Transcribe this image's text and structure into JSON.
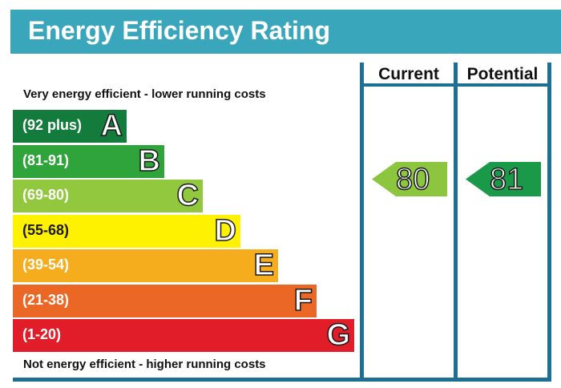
{
  "title": "Energy Efficiency Rating",
  "top_caption": "Very energy efficient - lower running costs",
  "bottom_caption": "Not energy efficient - higher running costs",
  "columns": {
    "current": "Current",
    "potential": "Potential"
  },
  "colors": {
    "header": "#3aa6bc",
    "border": "#1e6f94",
    "current_arrow": "#8cc63f",
    "potential_arrow": "#1a9a49"
  },
  "chart_data": {
    "type": "bar",
    "categories": [
      "A",
      "B",
      "C",
      "D",
      "E",
      "F",
      "G"
    ],
    "ranges": [
      "(92 plus)",
      "(81-91)",
      "(69-80)",
      "(55-68)",
      "(39-54)",
      "(21-38)",
      "(1-20)"
    ],
    "band_colors": [
      "#137c3c",
      "#2ea43a",
      "#92c83e",
      "#fff200",
      "#f5ad1e",
      "#ea6726",
      "#e21d2a"
    ],
    "current": {
      "value": "80",
      "band": "C"
    },
    "potential": {
      "value": "81",
      "band": "B"
    }
  }
}
